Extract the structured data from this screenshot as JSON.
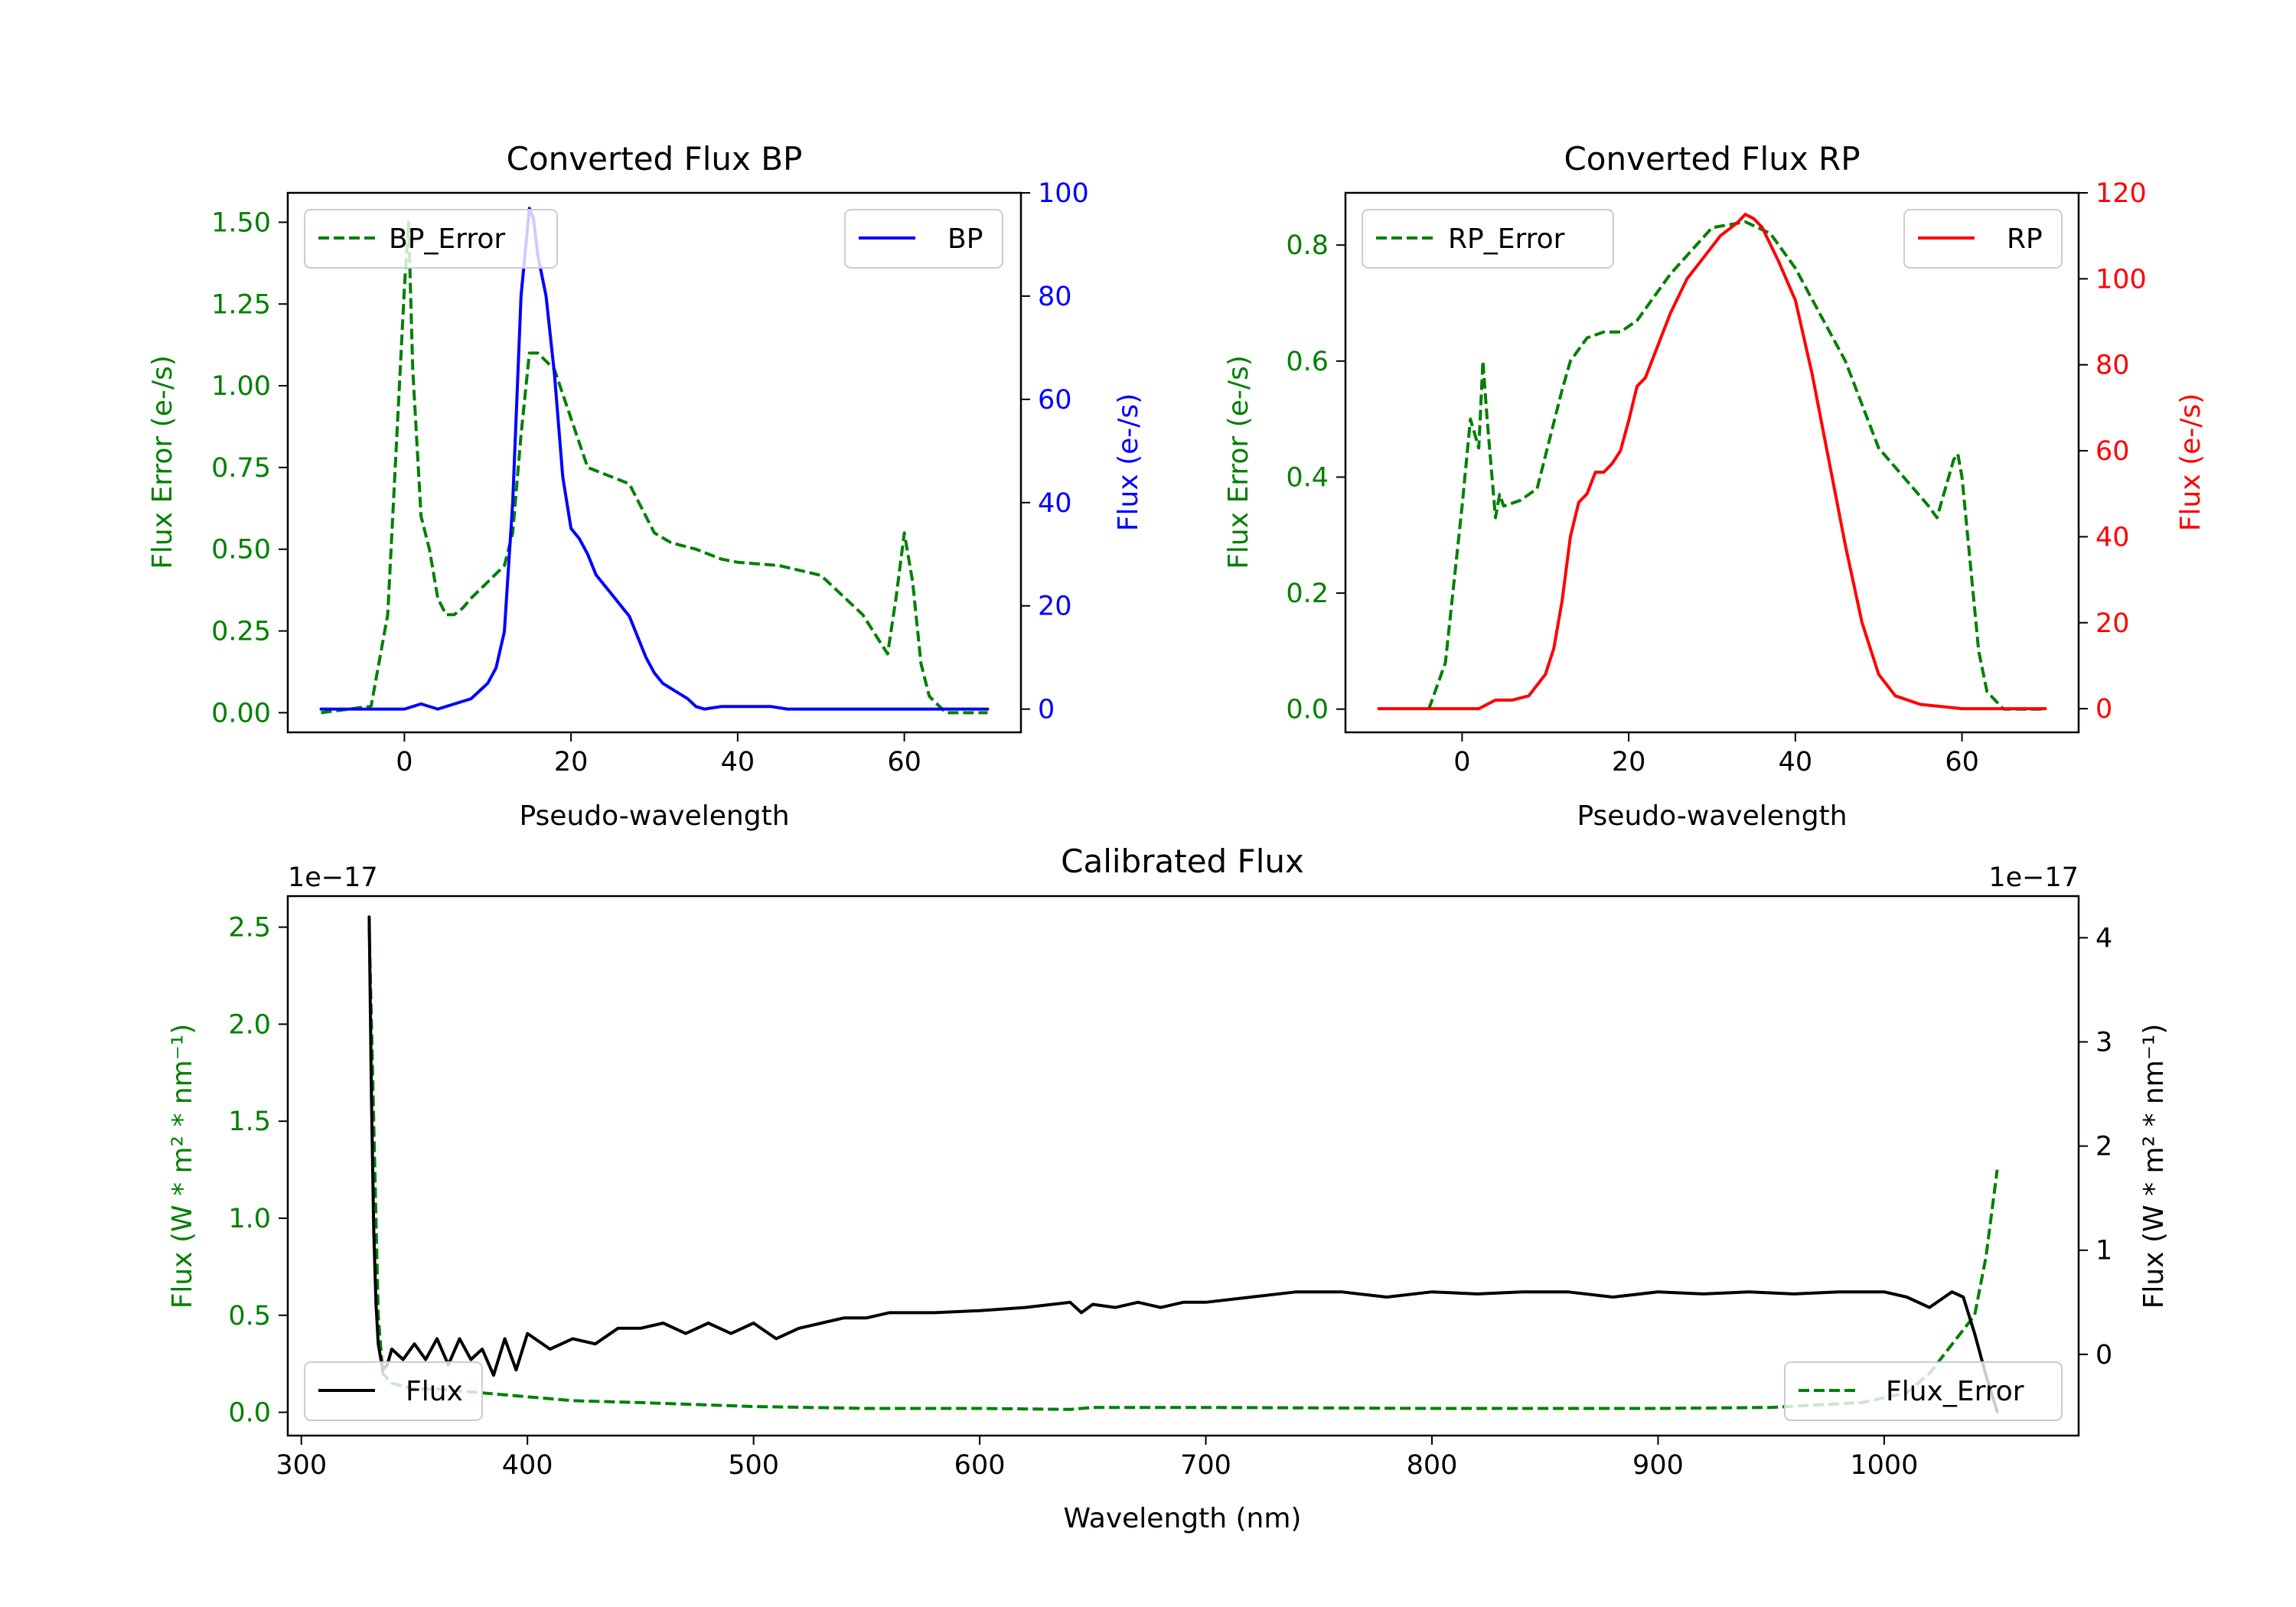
{
  "colors": {
    "green": "#008000",
    "blue": "#0000ff",
    "red": "#ff0000",
    "black": "#000000"
  },
  "chart_data": [
    {
      "type": "line",
      "title": "Converted Flux BP",
      "xlabel": "Pseudo-wavelength",
      "ylabel_left": "Flux Error (e-/s)",
      "ylabel_right": "Flux (e-/s)",
      "xlim": [
        -14,
        74
      ],
      "xticks": [
        0,
        20,
        40,
        60
      ],
      "ylim_left": [
        -0.06,
        1.59
      ],
      "yticks_left": [
        "0.00",
        "0.25",
        "0.50",
        "0.75",
        "1.00",
        "1.25",
        "1.50"
      ],
      "yticks_left_values": [
        0,
        0.25,
        0.5,
        0.75,
        1.0,
        1.25,
        1.5
      ],
      "ylim_right": [
        -4.5,
        100
      ],
      "yticks_right": [
        "0",
        "20",
        "40",
        "60",
        "80",
        "100"
      ],
      "yticks_right_values": [
        0,
        20,
        40,
        60,
        80,
        100
      ],
      "legend_left": "BP_Error",
      "legend_right": "BP",
      "series": [
        {
          "name": "BP_Error",
          "axis": "left",
          "color": "green",
          "dashed": true,
          "x": [
            -10,
            -4,
            -2,
            -1,
            0,
            0.5,
            1,
            2,
            3,
            4,
            5,
            6,
            7,
            8,
            10,
            12,
            13,
            14,
            15,
            16,
            18,
            20,
            22,
            25,
            27,
            30,
            32,
            35,
            38,
            40,
            45,
            50,
            55,
            57,
            58,
            59,
            60,
            61,
            62,
            63,
            65,
            70
          ],
          "y": [
            0.0,
            0.02,
            0.3,
            0.8,
            1.3,
            1.5,
            1.05,
            0.6,
            0.5,
            0.35,
            0.3,
            0.3,
            0.32,
            0.35,
            0.4,
            0.45,
            0.55,
            0.85,
            1.1,
            1.1,
            1.05,
            0.9,
            0.75,
            0.72,
            0.7,
            0.55,
            0.52,
            0.5,
            0.47,
            0.46,
            0.45,
            0.42,
            0.3,
            0.22,
            0.18,
            0.35,
            0.55,
            0.4,
            0.15,
            0.05,
            0.0,
            0.0
          ]
        },
        {
          "name": "BP",
          "axis": "right",
          "color": "blue",
          "dashed": false,
          "x": [
            -10,
            -2,
            0,
            2,
            4,
            6,
            8,
            10,
            11,
            12,
            13,
            14,
            15,
            15.5,
            16,
            17,
            18,
            19,
            20,
            21,
            22,
            23,
            25,
            27,
            28,
            29,
            30,
            31,
            32,
            33,
            34,
            35,
            36,
            38,
            40,
            42,
            44,
            46,
            48,
            50,
            52,
            55,
            60,
            65,
            70
          ],
          "y": [
            0,
            0,
            0,
            1,
            0,
            1,
            2,
            5,
            8,
            15,
            40,
            80,
            97,
            95,
            88,
            80,
            65,
            45,
            35,
            33,
            30,
            26,
            22,
            18,
            14,
            10,
            7,
            5,
            4,
            3,
            2,
            0.5,
            0,
            0.5,
            0.5,
            0.5,
            0.5,
            0,
            0,
            0,
            0,
            0,
            0,
            0,
            0
          ]
        }
      ]
    },
    {
      "type": "line",
      "title": "Converted Flux RP",
      "xlabel": "Pseudo-wavelength",
      "ylabel_left": "Flux Error (e-/s)",
      "ylabel_right": "Flux (e-/s)",
      "xlim": [
        -14,
        74
      ],
      "xticks": [
        0,
        20,
        40,
        60
      ],
      "ylim_left": [
        -0.04,
        0.89
      ],
      "yticks_left": [
        "0.0",
        "0.2",
        "0.4",
        "0.6",
        "0.8"
      ],
      "yticks_left_values": [
        0,
        0.2,
        0.4,
        0.6,
        0.8
      ],
      "ylim_right": [
        -5.5,
        120
      ],
      "yticks_right": [
        "0",
        "20",
        "40",
        "60",
        "80",
        "100",
        "120"
      ],
      "yticks_right_values": [
        0,
        20,
        40,
        60,
        80,
        100,
        120
      ],
      "legend_left": "RP_Error",
      "legend_right": "RP",
      "series": [
        {
          "name": "RP_Error",
          "axis": "left",
          "color": "green",
          "dashed": true,
          "x": [
            -4,
            -2,
            0,
            1,
            2,
            2.5,
            3,
            4,
            4.5,
            5,
            7,
            9,
            12,
            13,
            15,
            17,
            19,
            21,
            25,
            30,
            34,
            37,
            40,
            43,
            46,
            50,
            53,
            56,
            57,
            58,
            59,
            59.5,
            60,
            61,
            62,
            63,
            65,
            70
          ],
          "y": [
            0.0,
            0.08,
            0.35,
            0.5,
            0.45,
            0.6,
            0.5,
            0.33,
            0.37,
            0.35,
            0.36,
            0.38,
            0.55,
            0.6,
            0.64,
            0.65,
            0.65,
            0.67,
            0.75,
            0.83,
            0.84,
            0.82,
            0.76,
            0.68,
            0.6,
            0.45,
            0.4,
            0.35,
            0.33,
            0.38,
            0.43,
            0.44,
            0.4,
            0.25,
            0.1,
            0.03,
            0.0,
            0.0
          ]
        },
        {
          "name": "RP",
          "axis": "right",
          "color": "red",
          "dashed": false,
          "x": [
            -10,
            -2,
            0,
            2,
            4,
            6,
            8,
            10,
            11,
            12,
            13,
            14,
            15,
            16,
            17,
            18,
            19,
            20,
            21,
            22,
            23,
            24,
            25,
            27,
            29,
            31,
            33,
            34,
            35,
            36,
            38,
            40,
            42,
            44,
            46,
            48,
            50,
            52,
            55,
            60,
            65,
            70
          ],
          "y": [
            0,
            0,
            0,
            0,
            2,
            2,
            3,
            8,
            14,
            25,
            40,
            48,
            50,
            55,
            55,
            57,
            60,
            67,
            75,
            77,
            82,
            87,
            92,
            100,
            105,
            110,
            113,
            115,
            114,
            112,
            104,
            95,
            78,
            58,
            38,
            20,
            8,
            3,
            1,
            0,
            0,
            0
          ]
        }
      ]
    },
    {
      "type": "line",
      "title": "Calibrated Flux",
      "xlabel": "Wavelength (nm)",
      "ylabel_left": "Flux (W * m² * nm⁻¹)",
      "ylabel_right": "Flux (W * m² * nm⁻¹)",
      "offset_label_left": "1e−17",
      "offset_label_right": "1e−17",
      "xlim": [
        294,
        1086
      ],
      "xticks": [
        300,
        400,
        500,
        600,
        700,
        800,
        900,
        1000
      ],
      "ylim_left": [
        -0.12,
        2.66
      ],
      "yticks_left": [
        "0.0",
        "0.5",
        "1.0",
        "1.5",
        "2.0",
        "2.5"
      ],
      "yticks_left_values": [
        0,
        0.5,
        1.0,
        1.5,
        2.0,
        2.5
      ],
      "ylim_right": [
        -0.78,
        4.4
      ],
      "yticks_right": [
        "0",
        "1",
        "2",
        "3",
        "4"
      ],
      "yticks_right_values": [
        0,
        1,
        2,
        3,
        4
      ],
      "legend_left": "Flux",
      "legend_right": "Flux_Error",
      "series": [
        {
          "name": "Flux_Error",
          "axis": "left",
          "color": "green",
          "dashed": true,
          "x": [
            330,
            332,
            334,
            336,
            340,
            350,
            360,
            380,
            400,
            420,
            450,
            500,
            550,
            600,
            640,
            650,
            700,
            800,
            900,
            950,
            990,
            1010,
            1020,
            1030,
            1040,
            1045,
            1050
          ],
          "y": [
            2.5,
            1.5,
            0.5,
            0.2,
            0.15,
            0.12,
            0.12,
            0.1,
            0.08,
            0.06,
            0.05,
            0.03,
            0.02,
            0.02,
            0.015,
            0.025,
            0.025,
            0.02,
            0.02,
            0.025,
            0.05,
            0.1,
            0.2,
            0.35,
            0.5,
            0.8,
            1.25
          ]
        },
        {
          "name": "Flux",
          "axis": "right",
          "color": "black",
          "dashed": false,
          "x": [
            330,
            331,
            332,
            333,
            334,
            336,
            338,
            340,
            345,
            350,
            355,
            360,
            365,
            370,
            375,
            380,
            385,
            390,
            395,
            400,
            410,
            420,
            430,
            440,
            450,
            460,
            470,
            480,
            490,
            500,
            510,
            520,
            530,
            540,
            550,
            560,
            580,
            600,
            620,
            640,
            645,
            650,
            660,
            670,
            680,
            690,
            700,
            720,
            740,
            760,
            780,
            800,
            820,
            840,
            860,
            880,
            900,
            920,
            940,
            960,
            980,
            1000,
            1010,
            1020,
            1030,
            1035,
            1040,
            1045,
            1050
          ],
          "y": [
            4.2,
            2.5,
            1.2,
            0.5,
            0.1,
            -0.15,
            -0.1,
            0.05,
            -0.05,
            0.1,
            -0.05,
            0.15,
            -0.1,
            0.15,
            -0.05,
            0.05,
            -0.2,
            0.15,
            -0.15,
            0.2,
            0.05,
            0.15,
            0.1,
            0.25,
            0.25,
            0.3,
            0.2,
            0.3,
            0.2,
            0.3,
            0.15,
            0.25,
            0.3,
            0.35,
            0.35,
            0.4,
            0.4,
            0.42,
            0.45,
            0.5,
            0.4,
            0.48,
            0.45,
            0.5,
            0.45,
            0.5,
            0.5,
            0.55,
            0.6,
            0.6,
            0.55,
            0.6,
            0.58,
            0.6,
            0.6,
            0.55,
            0.6,
            0.58,
            0.6,
            0.58,
            0.6,
            0.6,
            0.55,
            0.45,
            0.6,
            0.55,
            0.2,
            -0.2,
            -0.55
          ]
        }
      ]
    }
  ]
}
